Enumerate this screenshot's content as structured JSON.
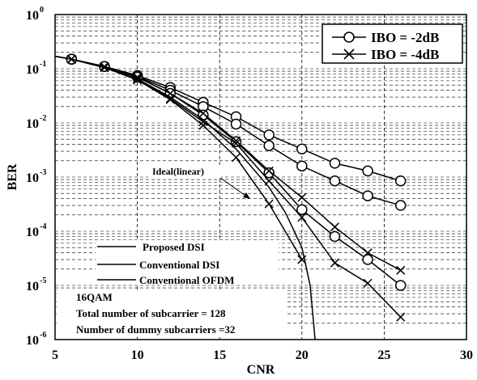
{
  "chart_data": {
    "type": "line",
    "xlabel": "CNR",
    "ylabel": "BER",
    "xlim": [
      5,
      30
    ],
    "ylim": [
      1e-06,
      1
    ],
    "yscale": "log",
    "grid": true,
    "x_ticks": [
      "5",
      "10",
      "15",
      "20",
      "25",
      "30"
    ],
    "y_ticks": [
      {
        "base": "10",
        "exp": "0",
        "value": 1
      },
      {
        "base": "10",
        "exp": "-1",
        "value": 0.1
      },
      {
        "base": "10",
        "exp": "-2",
        "value": 0.01
      },
      {
        "base": "10",
        "exp": "-3",
        "value": 0.001
      },
      {
        "base": "10",
        "exp": "-4",
        "value": 0.0001
      },
      {
        "base": "10",
        "exp": "-5",
        "value": 1e-05
      },
      {
        "base": "10",
        "exp": "-6",
        "value": 1e-06
      }
    ],
    "marker_legend": {
      "position": "top-right",
      "entries": [
        {
          "label": "IBO = -2dB",
          "marker": "circle"
        },
        {
          "label": "IBO = -4dB",
          "marker": "x"
        }
      ]
    },
    "line_legend": {
      "position": "bottom-left",
      "entries": [
        "Proposed DSI",
        "Conventional DSI",
        "Conventional OFDM"
      ]
    },
    "annotation": "Ideal(linear)",
    "notes": [
      "16QAM",
      "Total number of subcarrier = 128",
      "Number of dummy  subcarriers =32"
    ],
    "series": [
      {
        "marker": "circle",
        "x": [
          5,
          6,
          8,
          10,
          12,
          14,
          16,
          18,
          20,
          22,
          24,
          26
        ],
        "values": [
          0.17,
          0.15,
          0.11,
          0.075,
          0.045,
          0.024,
          0.013,
          0.006,
          0.0033,
          0.0018,
          0.0013,
          0.00085
        ]
      },
      {
        "marker": "circle",
        "x": [
          5,
          6,
          8,
          10,
          12,
          14,
          16,
          18,
          20,
          22,
          24,
          26
        ],
        "values": [
          0.17,
          0.15,
          0.11,
          0.072,
          0.04,
          0.02,
          0.0095,
          0.0038,
          0.0016,
          0.00085,
          0.00045,
          0.0003
        ]
      },
      {
        "marker": "circle",
        "x": [
          5,
          6,
          8,
          10,
          12,
          14,
          16,
          18,
          20,
          22,
          24,
          26
        ],
        "values": [
          0.17,
          0.15,
          0.11,
          0.07,
          0.035,
          0.014,
          0.0045,
          0.0012,
          0.00025,
          8e-05,
          3e-05,
          1e-05
        ]
      },
      {
        "marker": "x",
        "x": [
          5,
          6,
          8,
          10,
          12,
          14,
          16,
          18,
          20,
          22,
          24,
          26
        ],
        "values": [
          0.17,
          0.15,
          0.11,
          0.07,
          0.035,
          0.015,
          0.0047,
          0.0013,
          0.00042,
          0.00012,
          4e-05,
          1.9e-05
        ]
      },
      {
        "marker": "x",
        "x": [
          5,
          6,
          8,
          10,
          12,
          14,
          16,
          18,
          20,
          22,
          24,
          26
        ],
        "values": [
          0.17,
          0.15,
          0.105,
          0.065,
          0.028,
          0.0105,
          0.0042,
          0.00085,
          0.00018,
          2.6e-05,
          1.1e-05,
          2.6e-06
        ]
      },
      {
        "marker": "x",
        "x": [
          5,
          6,
          8,
          10,
          12,
          14,
          16,
          18,
          20
        ],
        "values": [
          0.17,
          0.15,
          0.105,
          0.062,
          0.027,
          0.009,
          0.0023,
          0.00032,
          3e-05
        ]
      },
      {
        "marker": "none",
        "x": [
          5,
          6,
          8,
          10,
          12,
          14,
          16,
          18,
          19,
          20,
          20.5,
          20.8
        ],
        "values": [
          0.17,
          0.15,
          0.105,
          0.065,
          0.03,
          0.0115,
          0.0033,
          0.00065,
          0.00022,
          5e-05,
          1e-05,
          1e-06
        ]
      }
    ]
  }
}
